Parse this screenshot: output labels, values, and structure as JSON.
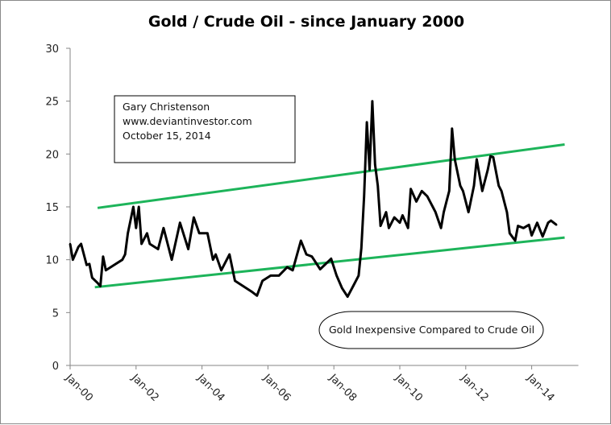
{
  "chart_data": {
    "type": "line",
    "title": "Gold / Crude Oil - since January 2000",
    "xlabel": "",
    "ylabel": "",
    "ylim": [
      0,
      30
    ],
    "yticks": [
      "0",
      "5",
      "10",
      "15",
      "20",
      "25",
      "30"
    ],
    "xlim": [
      "2000-01",
      "2015-06"
    ],
    "xticks": [
      "Jan-00",
      "Jan-02",
      "Jan-04",
      "Jan-06",
      "Jan-08",
      "Jan-10",
      "Jan-12",
      "Jan-14"
    ],
    "grid": false,
    "colors": {
      "series": "#000000",
      "trend": "#1db45a"
    },
    "series": [
      {
        "x": [
          "2000-01",
          "2000-02",
          "2000-04",
          "2000-05",
          "2000-07",
          "2000-08",
          "2000-09",
          "2000-11",
          "2000-12",
          "2001-01",
          "2001-02",
          "2001-05",
          "2001-08",
          "2001-09",
          "2001-10",
          "2001-12",
          "2002-01",
          "2002-02",
          "2002-03",
          "2002-05",
          "2002-06",
          "2002-09",
          "2002-11",
          "2003-02",
          "2003-05",
          "2003-08",
          "2003-10",
          "2003-12",
          "2004-03",
          "2004-05",
          "2004-06",
          "2004-08",
          "2004-11",
          "2005-01",
          "2005-04",
          "2005-07",
          "2005-09",
          "2005-11",
          "2006-02",
          "2006-05",
          "2006-08",
          "2006-10",
          "2007-01",
          "2007-03",
          "2007-05",
          "2007-08",
          "2007-12",
          "2008-02",
          "2008-04",
          "2008-06",
          "2008-08",
          "2008-10",
          "2008-11",
          "2008-12",
          "2009-01",
          "2009-02",
          "2009-03",
          "2009-04",
          "2009-05",
          "2009-06",
          "2009-08",
          "2009-09",
          "2009-11",
          "2010-01",
          "2010-02",
          "2010-04",
          "2010-05",
          "2010-07",
          "2010-09",
          "2010-11",
          "2011-01",
          "2011-02",
          "2011-04",
          "2011-05",
          "2011-06",
          "2011-07",
          "2011-08",
          "2011-09",
          "2011-11",
          "2011-12",
          "2012-01",
          "2012-02",
          "2012-04",
          "2012-05",
          "2012-07",
          "2012-09",
          "2012-10",
          "2012-11",
          "2013-01",
          "2013-02",
          "2013-04",
          "2013-05",
          "2013-07",
          "2013-08",
          "2013-10",
          "2013-12",
          "2014-01",
          "2014-03",
          "2014-05",
          "2014-07",
          "2014-08",
          "2014-10"
        ],
        "y": [
          11.5,
          10.0,
          11.2,
          11.5,
          9.5,
          9.6,
          8.3,
          7.8,
          7.5,
          10.3,
          9.0,
          9.5,
          10.0,
          10.5,
          12.5,
          15.0,
          13.0,
          15.0,
          11.5,
          12.5,
          11.5,
          11.0,
          13.0,
          10.0,
          13.5,
          11.0,
          14.0,
          12.5,
          12.5,
          10.0,
          10.5,
          9.0,
          10.5,
          8.0,
          7.5,
          7.0,
          6.6,
          8.0,
          8.5,
          8.5,
          9.3,
          9.0,
          11.8,
          10.5,
          10.3,
          9.1,
          10.1,
          8.5,
          7.3,
          6.5,
          7.5,
          8.5,
          11.1,
          16.0,
          23.0,
          18.5,
          25.0,
          19.0,
          17.0,
          13.2,
          14.5,
          13.0,
          14.0,
          13.5,
          14.2,
          13.0,
          16.7,
          15.5,
          16.5,
          16.0,
          15.0,
          14.5,
          13.0,
          14.5,
          15.5,
          16.5,
          22.4,
          19.5,
          17.0,
          16.5,
          15.5,
          14.5,
          17.0,
          19.5,
          16.5,
          18.5,
          19.8,
          19.7,
          17.0,
          16.5,
          14.5,
          12.5,
          11.8,
          13.2,
          13.0,
          13.3,
          12.3,
          13.5,
          12.2,
          13.5,
          13.7,
          13.3
        ]
      }
    ],
    "trendlines": [
      {
        "x": [
          "2000-11",
          "2015-01"
        ],
        "y": [
          14.9,
          20.9
        ]
      },
      {
        "x": [
          "2000-10",
          "2015-01"
        ],
        "y": [
          7.4,
          12.1
        ]
      }
    ],
    "annotations": {
      "author_box": [
        "Gary Christenson",
        "www.deviantinvestor.com",
        "October 15, 2014"
      ],
      "callout": "Gold Inexpensive Compared to Crude Oil"
    }
  }
}
